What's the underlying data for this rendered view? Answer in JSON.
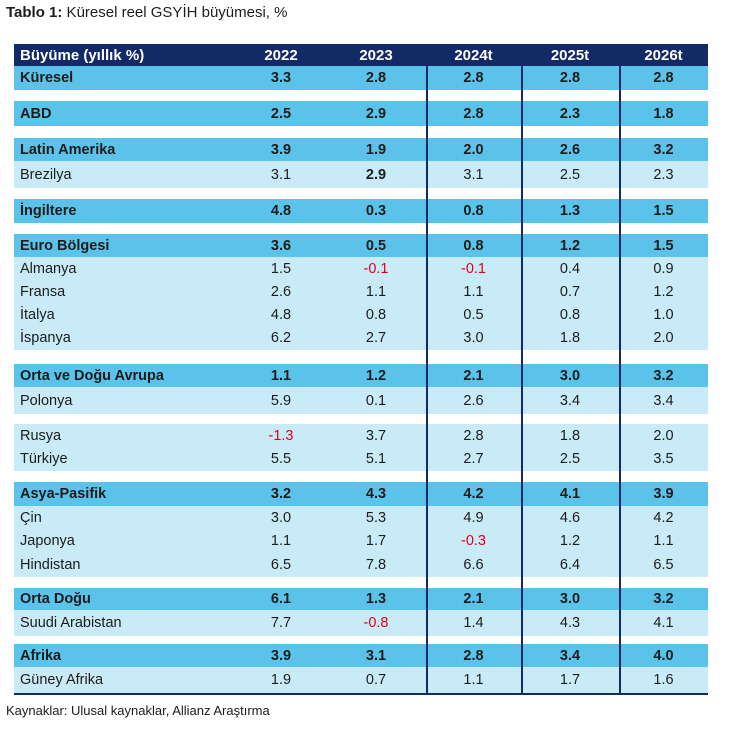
{
  "title_bold": "Tablo 1:",
  "title_rest": " Küresel reel GSYİH büyümesi, %",
  "header": {
    "label": "Büyüme (yıllık %)",
    "years": [
      "2022",
      "2023",
      "2024t",
      "2025t",
      "2026t"
    ]
  },
  "rows": [
    {
      "label": "Küresel",
      "kind": "region",
      "values": [
        "3.3",
        "2.8",
        "2.8",
        "2.8",
        "2.8"
      ]
    },
    {
      "label": "ABD",
      "kind": "region",
      "values": [
        "2.5",
        "2.9",
        "2.8",
        "2.3",
        "1.8"
      ]
    },
    {
      "label": "Latin Amerika",
      "kind": "region",
      "values": [
        "3.9",
        "1.9",
        "2.0",
        "2.6",
        "3.2"
      ]
    },
    {
      "label": "Brezilya",
      "kind": "sub",
      "values": [
        "3.1",
        "2.9",
        "3.1",
        "2.5",
        "2.3"
      ]
    },
    {
      "label": "İngiltere",
      "kind": "region",
      "values": [
        "4.8",
        "0.3",
        "0.8",
        "1.3",
        "1.5"
      ]
    },
    {
      "label": "Euro Bölgesi",
      "kind": "region",
      "values": [
        "3.6",
        "0.5",
        "0.8",
        "1.2",
        "1.5"
      ]
    },
    {
      "label": "Almanya",
      "kind": "sub",
      "values": [
        "1.5",
        "-0.1",
        "-0.1",
        "0.4",
        "0.9"
      ]
    },
    {
      "label": "Fransa",
      "kind": "sub",
      "values": [
        "2.6",
        "1.1",
        "1.1",
        "0.7",
        "1.2"
      ]
    },
    {
      "label": "İtalya",
      "kind": "sub",
      "values": [
        "4.8",
        "0.8",
        "0.5",
        "0.8",
        "1.0"
      ]
    },
    {
      "label": "İspanya",
      "kind": "sub",
      "values": [
        "6.2",
        "2.7",
        "3.0",
        "1.8",
        "2.0"
      ]
    },
    {
      "label": "Orta ve Doğu Avrupa",
      "kind": "region",
      "values": [
        "1.1",
        "1.2",
        "2.1",
        "3.0",
        "3.2"
      ]
    },
    {
      "label": "Polonya",
      "kind": "sub",
      "values": [
        "5.9",
        "0.1",
        "2.6",
        "3.4",
        "3.4"
      ]
    },
    {
      "label": "Rusya",
      "kind": "sub",
      "values": [
        "-1.3",
        "3.7",
        "2.8",
        "1.8",
        "2.0"
      ]
    },
    {
      "label": "Türkiye",
      "kind": "sub",
      "values": [
        "5.5",
        "5.1",
        "2.7",
        "2.5",
        "3.5"
      ]
    },
    {
      "label": "Asya-Pasifik",
      "kind": "region",
      "values": [
        "3.2",
        "4.3",
        "4.2",
        "4.1",
        "3.9"
      ]
    },
    {
      "label": "Çin",
      "kind": "sub",
      "values": [
        "3.0",
        "5.3",
        "4.9",
        "4.6",
        "4.2"
      ]
    },
    {
      "label": "Japonya",
      "kind": "sub",
      "values": [
        "1.1",
        "1.7",
        "-0.3",
        "1.2",
        "1.1"
      ]
    },
    {
      "label": "Hindistan",
      "kind": "sub",
      "values": [
        "6.5",
        "7.8",
        "6.6",
        "6.4",
        "6.5"
      ]
    },
    {
      "label": "Orta Doğu",
      "kind": "region",
      "values": [
        "6.1",
        "1.3",
        "2.1",
        "3.0",
        "3.2"
      ]
    },
    {
      "label": "Suudi Arabistan",
      "kind": "sub",
      "values": [
        "7.7",
        "-0.8",
        "1.4",
        "4.3",
        "4.1"
      ]
    },
    {
      "label": "Afrika",
      "kind": "region",
      "values": [
        "3.9",
        "3.1",
        "2.8",
        "3.4",
        "4.0"
      ]
    },
    {
      "label": "Güney Afrika",
      "kind": "sub",
      "values": [
        "1.9",
        "0.7",
        "1.1",
        "1.7",
        "1.6"
      ]
    }
  ],
  "source": "Kaynaklar: Ulusal kaynaklar, Allianz Araştırma",
  "colors": {
    "header": "#122a66",
    "region": "#5bc3ea",
    "sub": "#c9ebf8",
    "negative": "#e3001b"
  }
}
